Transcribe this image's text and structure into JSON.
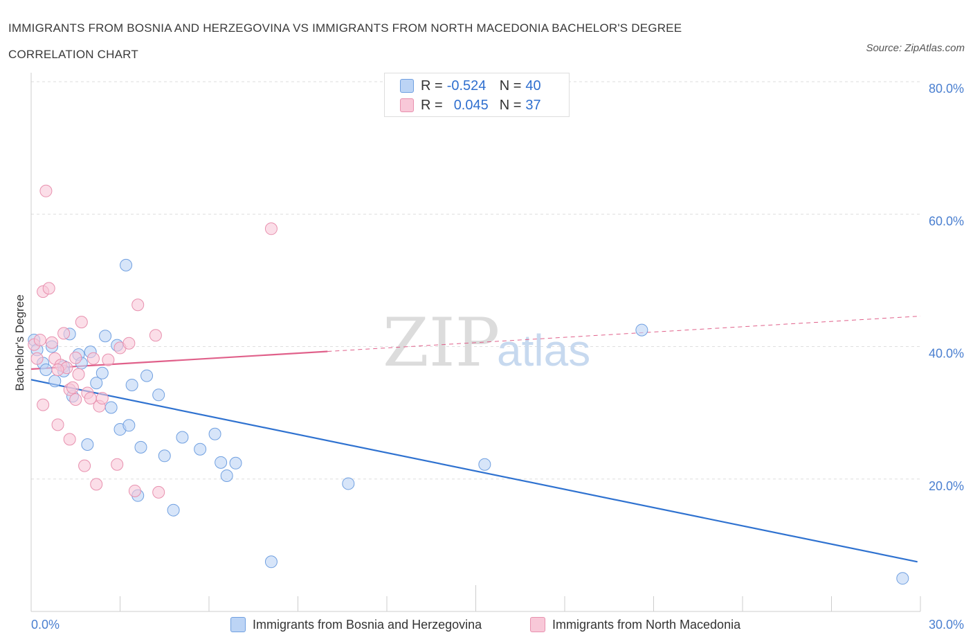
{
  "header": {
    "title": "IMMIGRANTS FROM BOSNIA AND HERZEGOVINA VS IMMIGRANTS FROM NORTH MACEDONIA BACHELOR'S DEGREE CORRELATION CHART",
    "source": "Source: ZipAtlas.com"
  },
  "watermark": {
    "zip": "ZIP",
    "atlas": "atlas"
  },
  "legend": {
    "series1": {
      "r_label": "R =",
      "r_value": "-0.524",
      "n_label": "N =",
      "n_value": "40"
    },
    "series2": {
      "r_label": "R =",
      "r_value": "0.045",
      "n_label": "N =",
      "n_value": "37"
    }
  },
  "bottom_legend": {
    "series1": "Immigrants from Bosnia and Herzegovina",
    "series2": "Immigrants from North Macedonia"
  },
  "chart_data": {
    "type": "scatter",
    "title": "IMMIGRANTS FROM BOSNIA AND HERZEGOVINA VS IMMIGRANTS FROM NORTH MACEDONIA BACHELOR'S DEGREE CORRELATION CHART",
    "xlabel": "",
    "ylabel": "Bachelor's Degree",
    "xlim": [
      0,
      30
    ],
    "ylim": [
      0,
      80
    ],
    "x_tick_labels": [
      "0.0%",
      "30.0%"
    ],
    "y_ticks": [
      20,
      40,
      60,
      80
    ],
    "y_tick_labels": [
      "20.0%",
      "40.0%",
      "60.0%",
      "80.0%"
    ],
    "grid": true,
    "legend_placement": "top-center",
    "colors": {
      "series1_fill": "#bcd4f5",
      "series1_stroke": "#6f9fe0",
      "series1_line": "#2f72d0",
      "series2_fill": "#f8c8d8",
      "series2_stroke": "#e890ae",
      "series2_line": "#e0608a"
    },
    "series": [
      {
        "name": "Immigrants from Bosnia and Herzegovina",
        "R": -0.524,
        "N": 40,
        "trend": {
          "x": [
            0,
            29.9
          ],
          "y": [
            35.0,
            7.5
          ],
          "dashed_from": null
        },
        "points": [
          [
            0.1,
            41.0
          ],
          [
            0.2,
            39.5
          ],
          [
            0.4,
            37.5
          ],
          [
            0.5,
            36.5
          ],
          [
            0.7,
            40.0
          ],
          [
            0.8,
            34.8
          ],
          [
            1.1,
            37.0
          ],
          [
            1.1,
            36.3
          ],
          [
            1.3,
            41.9
          ],
          [
            1.4,
            32.5
          ],
          [
            1.6,
            38.8
          ],
          [
            1.7,
            37.5
          ],
          [
            1.9,
            25.2
          ],
          [
            2.0,
            39.2
          ],
          [
            2.2,
            34.5
          ],
          [
            2.4,
            36.0
          ],
          [
            2.5,
            41.6
          ],
          [
            2.7,
            30.8
          ],
          [
            2.9,
            40.2
          ],
          [
            3.0,
            27.5
          ],
          [
            3.2,
            52.3
          ],
          [
            3.3,
            28.1
          ],
          [
            3.4,
            34.2
          ],
          [
            3.6,
            17.5
          ],
          [
            3.7,
            24.8
          ],
          [
            3.9,
            35.6
          ],
          [
            4.3,
            32.7
          ],
          [
            4.5,
            23.5
          ],
          [
            4.8,
            15.3
          ],
          [
            5.1,
            26.3
          ],
          [
            5.7,
            24.5
          ],
          [
            6.2,
            26.8
          ],
          [
            6.4,
            22.5
          ],
          [
            6.6,
            20.5
          ],
          [
            6.9,
            22.4
          ],
          [
            8.1,
            7.5
          ],
          [
            10.7,
            19.3
          ],
          [
            15.3,
            22.2
          ],
          [
            20.6,
            42.5
          ],
          [
            29.4,
            5.0
          ]
        ]
      },
      {
        "name": "Immigrants from North Macedonia",
        "R": 0.045,
        "N": 37,
        "trend": {
          "x": [
            0,
            30
          ],
          "y": [
            36.6,
            44.6
          ],
          "dashed_from": 10.0
        },
        "points": [
          [
            0.1,
            40.3
          ],
          [
            0.2,
            38.2
          ],
          [
            0.3,
            41.0
          ],
          [
            0.4,
            31.2
          ],
          [
            0.4,
            48.3
          ],
          [
            0.5,
            63.5
          ],
          [
            0.6,
            48.8
          ],
          [
            0.7,
            40.6
          ],
          [
            0.8,
            38.2
          ],
          [
            0.9,
            28.2
          ],
          [
            1.0,
            37.2
          ],
          [
            1.1,
            42.0
          ],
          [
            1.2,
            36.8
          ],
          [
            1.3,
            33.5
          ],
          [
            1.3,
            26.0
          ],
          [
            1.4,
            33.8
          ],
          [
            1.5,
            32.0
          ],
          [
            1.5,
            38.3
          ],
          [
            1.7,
            43.7
          ],
          [
            1.8,
            22.0
          ],
          [
            1.9,
            33.0
          ],
          [
            2.0,
            32.2
          ],
          [
            2.1,
            38.2
          ],
          [
            2.2,
            19.2
          ],
          [
            2.3,
            31.0
          ],
          [
            2.4,
            32.2
          ],
          [
            2.9,
            22.2
          ],
          [
            3.0,
            39.8
          ],
          [
            3.3,
            40.5
          ],
          [
            3.6,
            46.3
          ],
          [
            3.5,
            18.2
          ],
          [
            4.2,
            41.7
          ],
          [
            4.3,
            18.0
          ],
          [
            8.1,
            57.8
          ],
          [
            0.9,
            36.5
          ],
          [
            1.6,
            35.8
          ],
          [
            2.6,
            38.0
          ]
        ]
      }
    ]
  }
}
